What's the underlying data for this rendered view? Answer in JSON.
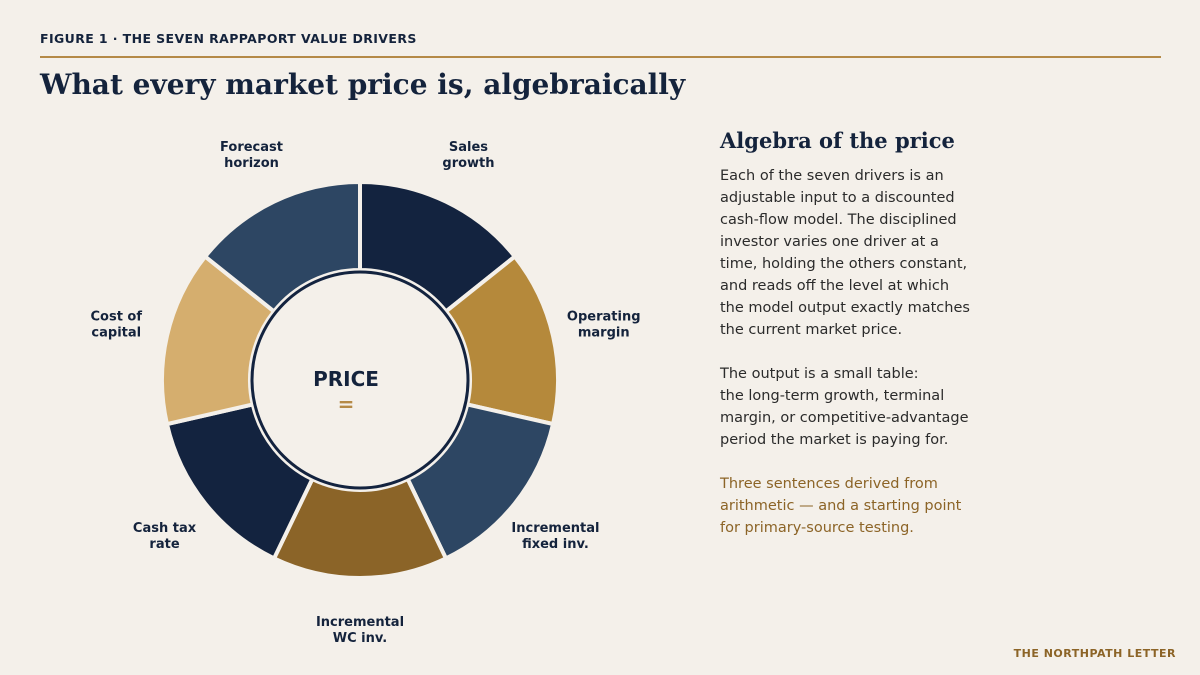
{
  "header": {
    "figure_label": "FIGURE 1  ·  THE SEVEN RAPPAPORT VALUE DRIVERS",
    "headline": "What every market price is, algebraically"
  },
  "diagram": {
    "center_title": "PRICE",
    "center_symbol": "=",
    "segments": [
      {
        "label_lines": [
          "Sales",
          "growth"
        ],
        "color": "#13233f"
      },
      {
        "label_lines": [
          "Operating",
          "margin"
        ],
        "color": "#b5893b"
      },
      {
        "label_lines": [
          "Incremental",
          "fixed inv."
        ],
        "color": "#2d4663"
      },
      {
        "label_lines": [
          "Incremental",
          "WC inv."
        ],
        "color": "#8b6428"
      },
      {
        "label_lines": [
          "Cash tax",
          "rate"
        ],
        "color": "#13233f"
      },
      {
        "label_lines": [
          "Cost of",
          "capital"
        ],
        "color": "#d5ae6e"
      },
      {
        "label_lines": [
          "Forecast",
          "horizon"
        ],
        "color": "#2d4663"
      }
    ]
  },
  "side_panel": {
    "title": "Algebra of the price",
    "paragraph_1": "Each of the seven drivers is an\nadjustable input to a discounted\ncash-flow model. The disciplined\ninvestor varies one driver at a\ntime, holding the others constant,\nand reads off the level at which\nthe model output exactly matches\nthe current market price.",
    "paragraph_2": "The output is a small table:\nthe long-term growth, terminal\nmargin, or competitive-advantage\nperiod the market is paying for.",
    "paragraph_3": "Three sentences derived from\narithmetic — and a starting point\nfor primary-source testing."
  },
  "footer": {
    "brand": "THE NORTHPATH LETTER"
  }
}
